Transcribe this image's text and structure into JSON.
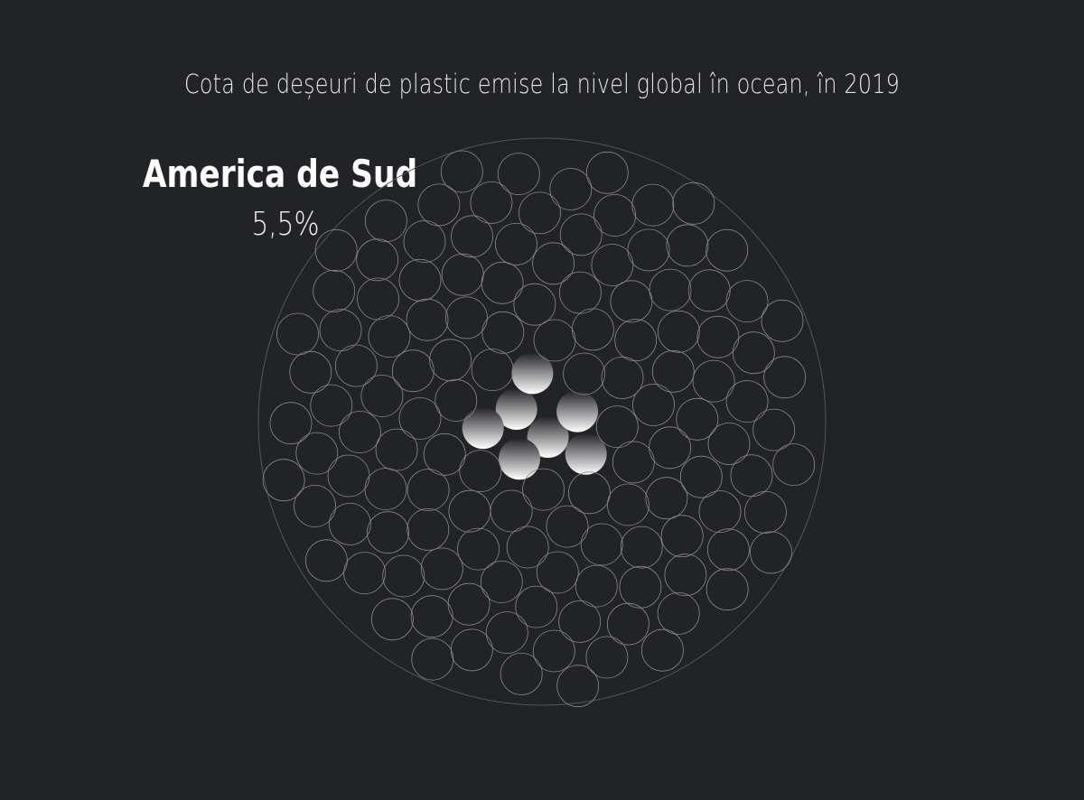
{
  "title": "Cota de deșeuri de plastic emise la nivel global în ocean, în 2019",
  "chart_data": {
    "type": "proportional-dot-circle",
    "total_dots": 133,
    "highlighted_dots": 7,
    "highlight": {
      "label": "America de Sud",
      "value_text": "5,5%",
      "value": 5.5
    }
  },
  "colors": {
    "background": "#222327",
    "dot_outline": "#8a8a8e",
    "outer_ring": "#55565b",
    "highlight_fill_top": "#ffffff",
    "highlight_fill_bottom": "#222327"
  }
}
